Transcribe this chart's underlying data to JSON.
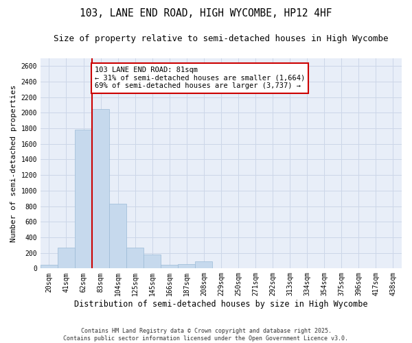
{
  "title1": "103, LANE END ROAD, HIGH WYCOMBE, HP12 4HF",
  "title2": "Size of property relative to semi-detached houses in High Wycombe",
  "xlabel": "Distribution of semi-detached houses by size in High Wycombe",
  "ylabel": "Number of semi-detached properties",
  "categories": [
    "20sqm",
    "41sqm",
    "62sqm",
    "83sqm",
    "104sqm",
    "125sqm",
    "145sqm",
    "166sqm",
    "187sqm",
    "208sqm",
    "229sqm",
    "250sqm",
    "271sqm",
    "292sqm",
    "313sqm",
    "334sqm",
    "354sqm",
    "375sqm",
    "396sqm",
    "417sqm",
    "438sqm"
  ],
  "values": [
    50,
    270,
    1780,
    2050,
    830,
    270,
    175,
    50,
    55,
    95,
    0,
    0,
    0,
    0,
    0,
    0,
    0,
    0,
    0,
    0,
    0
  ],
  "bar_color": "#c6d9ed",
  "bar_edge_color": "#9bbad6",
  "vline_color": "#cc0000",
  "annotation_title": "103 LANE END ROAD: 81sqm",
  "annotation_line1": "← 31% of semi-detached houses are smaller (1,664)",
  "annotation_line2": "69% of semi-detached houses are larger (3,737) →",
  "annotation_box_color": "#ffffff",
  "annotation_box_edge": "#cc0000",
  "ylim": [
    0,
    2700
  ],
  "yticks": [
    0,
    200,
    400,
    600,
    800,
    1000,
    1200,
    1400,
    1600,
    1800,
    2000,
    2200,
    2400,
    2600
  ],
  "grid_color": "#ccd6e8",
  "bg_color": "#e8eef8",
  "footnote": "Contains HM Land Registry data © Crown copyright and database right 2025.\nContains public sector information licensed under the Open Government Licence v3.0.",
  "title1_fontsize": 10.5,
  "title2_fontsize": 9,
  "xlabel_fontsize": 8.5,
  "ylabel_fontsize": 8,
  "tick_fontsize": 7,
  "annot_fontsize": 7.5,
  "footnote_fontsize": 6
}
